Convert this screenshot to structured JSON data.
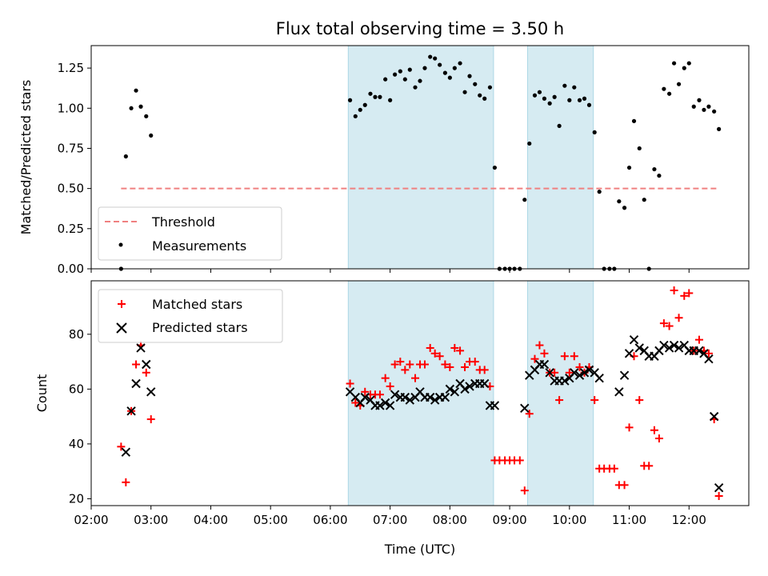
{
  "chart_data": [
    {
      "type": "scatter",
      "title": "Flux total observing time = 3.50 h",
      "xlabel": "",
      "ylabel": "Matched/Predicted stars",
      "xlim": [
        2.0,
        13.0
      ],
      "ylim": [
        0.0,
        1.39
      ],
      "yticks": [
        "0.00",
        "0.25",
        "0.50",
        "0.75",
        "1.00",
        "1.25"
      ],
      "shaded_intervals": [
        [
          6.3,
          8.73
        ],
        [
          9.3,
          10.4
        ]
      ],
      "shade_color": "#add8e6",
      "threshold": {
        "name": "Threshold",
        "value": 0.5,
        "x_range": [
          2.5,
          12.5
        ],
        "color": "#f08080",
        "style": "dashed"
      },
      "legend": {
        "position": "bottom-left",
        "entries": [
          "Threshold",
          "Measurements"
        ]
      },
      "series": [
        {
          "name": "Measurements",
          "color": "#000000",
          "marker": "dot",
          "x": [
            2.5,
            2.58,
            2.67,
            2.75,
            2.83,
            2.92,
            3.0,
            6.33,
            6.42,
            6.5,
            6.58,
            6.67,
            6.75,
            6.83,
            6.92,
            7.0,
            7.08,
            7.17,
            7.25,
            7.33,
            7.42,
            7.5,
            7.58,
            7.67,
            7.75,
            7.83,
            7.92,
            8.0,
            8.08,
            8.17,
            8.25,
            8.33,
            8.42,
            8.5,
            8.58,
            8.67,
            8.75,
            8.83,
            8.92,
            9.0,
            9.08,
            9.17,
            9.25,
            9.33,
            9.42,
            9.5,
            9.58,
            9.67,
            9.75,
            9.83,
            9.92,
            10.0,
            10.08,
            10.17,
            10.25,
            10.33,
            10.42,
            10.5,
            10.58,
            10.67,
            10.75,
            10.83,
            10.92,
            11.0,
            11.08,
            11.17,
            11.25,
            11.33,
            11.42,
            11.5,
            11.58,
            11.67,
            11.75,
            11.83,
            11.92,
            12.0,
            12.08,
            12.17,
            12.25,
            12.33,
            12.42,
            12.5
          ],
          "y": [
            0.0,
            0.7,
            1.0,
            1.11,
            1.01,
            0.95,
            0.83,
            1.05,
            0.95,
            0.99,
            1.02,
            1.09,
            1.07,
            1.07,
            1.18,
            1.05,
            1.21,
            1.23,
            1.18,
            1.24,
            1.13,
            1.17,
            1.25,
            1.32,
            1.31,
            1.27,
            1.22,
            1.19,
            1.25,
            1.28,
            1.1,
            1.2,
            1.15,
            1.08,
            1.06,
            1.13,
            0.63,
            0.0,
            0.0,
            0.0,
            0.0,
            0.0,
            0.43,
            0.78,
            1.08,
            1.1,
            1.06,
            1.03,
            1.07,
            0.89,
            1.14,
            1.05,
            1.13,
            1.05,
            1.06,
            1.02,
            0.85,
            0.48,
            0.0,
            0.0,
            0.0,
            0.42,
            0.38,
            0.63,
            0.92,
            0.75,
            0.43,
            0.0,
            0.62,
            0.58,
            1.12,
            1.09,
            1.28,
            1.15,
            1.25,
            1.28,
            1.01,
            1.05,
            0.99,
            1.01,
            0.98,
            0.87
          ]
        }
      ]
    },
    {
      "type": "scatter",
      "title": "",
      "xlabel": "Time (UTC)",
      "ylabel": "Count",
      "xlim": [
        2.0,
        13.0
      ],
      "ylim": [
        17.5,
        99.5
      ],
      "yticks": [
        "20",
        "40",
        "60",
        "80"
      ],
      "xticks": [
        "02:00",
        "03:00",
        "04:00",
        "05:00",
        "06:00",
        "07:00",
        "08:00",
        "09:00",
        "10:00",
        "11:00",
        "12:00"
      ],
      "shaded_intervals": [
        [
          6.3,
          8.73
        ],
        [
          9.3,
          10.4
        ]
      ],
      "shade_color": "#add8e6",
      "legend": {
        "position": "top-left",
        "entries": [
          "Matched stars",
          "Predicted stars"
        ]
      },
      "series": [
        {
          "name": "Matched stars",
          "color": "#ff0000",
          "marker": "plus",
          "x": [
            2.5,
            2.58,
            2.67,
            2.75,
            2.83,
            2.92,
            3.0,
            6.33,
            6.42,
            6.5,
            6.58,
            6.67,
            6.75,
            6.83,
            6.92,
            7.0,
            7.08,
            7.17,
            7.25,
            7.33,
            7.42,
            7.5,
            7.58,
            7.67,
            7.75,
            7.83,
            7.92,
            8.0,
            8.08,
            8.17,
            8.25,
            8.33,
            8.42,
            8.5,
            8.58,
            8.67,
            8.75,
            8.83,
            8.92,
            9.0,
            9.08,
            9.17,
            9.25,
            9.33,
            9.42,
            9.5,
            9.58,
            9.67,
            9.75,
            9.83,
            9.92,
            10.0,
            10.08,
            10.17,
            10.25,
            10.33,
            10.42,
            10.5,
            10.58,
            10.67,
            10.75,
            10.83,
            10.92,
            11.0,
            11.08,
            11.17,
            11.25,
            11.33,
            11.42,
            11.5,
            11.58,
            11.67,
            11.75,
            11.83,
            11.92,
            12.0,
            12.08,
            12.17,
            12.25,
            12.33,
            12.42,
            12.5
          ],
          "y": [
            39,
            26,
            52,
            69,
            76,
            66,
            49,
            62,
            55,
            54,
            59,
            58,
            58,
            58,
            64,
            61,
            69,
            70,
            67,
            69,
            64,
            69,
            69,
            75,
            73,
            72,
            69,
            68,
            75,
            74,
            68,
            70,
            70,
            67,
            67,
            61,
            34,
            34,
            34,
            34,
            34,
            34,
            23,
            51,
            71,
            76,
            73,
            66,
            66,
            56,
            72,
            66,
            72,
            68,
            66,
            68,
            56,
            31,
            31,
            31,
            31,
            25,
            25,
            46,
            72,
            56,
            32,
            32,
            45,
            42,
            84,
            83,
            96,
            86,
            94,
            95,
            74,
            78,
            74,
            73,
            49,
            21
          ]
        },
        {
          "name": "Predicted stars",
          "color": "#000000",
          "marker": "x",
          "x": [
            2.58,
            2.67,
            2.75,
            2.83,
            2.92,
            3.0,
            6.33,
            6.42,
            6.5,
            6.58,
            6.67,
            6.75,
            6.83,
            6.92,
            7.0,
            7.08,
            7.17,
            7.25,
            7.33,
            7.42,
            7.5,
            7.58,
            7.67,
            7.75,
            7.83,
            7.92,
            8.0,
            8.08,
            8.17,
            8.25,
            8.33,
            8.42,
            8.5,
            8.58,
            8.67,
            8.75,
            9.25,
            9.33,
            9.42,
            9.5,
            9.58,
            9.67,
            9.75,
            9.83,
            9.92,
            10.0,
            10.08,
            10.17,
            10.25,
            10.33,
            10.42,
            10.5,
            10.83,
            10.92,
            11.0,
            11.08,
            11.17,
            11.25,
            11.33,
            11.42,
            11.5,
            11.58,
            11.67,
            11.75,
            11.83,
            11.92,
            12.0,
            12.08,
            12.17,
            12.25,
            12.33,
            12.42,
            12.5
          ],
          "y": [
            37,
            52,
            62,
            75,
            69,
            59,
            59,
            57,
            55,
            57,
            56,
            54,
            54,
            55,
            54,
            58,
            57,
            57,
            56,
            57,
            59,
            57,
            57,
            56,
            57,
            57,
            60,
            59,
            62,
            60,
            61,
            62,
            62,
            62,
            54,
            54,
            53,
            65,
            67,
            69,
            69,
            66,
            63,
            63,
            63,
            64,
            66,
            65,
            66,
            67,
            66,
            64,
            59,
            65,
            73,
            78,
            75,
            74,
            72,
            72,
            74,
            76,
            75,
            76,
            75,
            76,
            74,
            74,
            74,
            73,
            71,
            50,
            24
          ]
        }
      ]
    }
  ]
}
